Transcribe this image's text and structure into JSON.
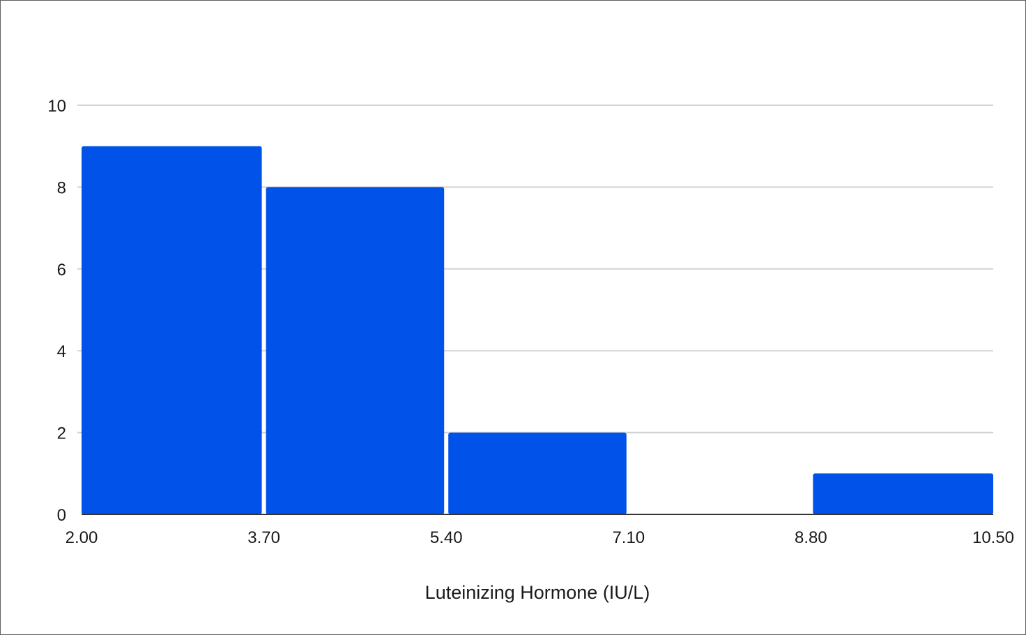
{
  "chart_data": {
    "type": "bar",
    "subtype": "histogram",
    "title": "",
    "xlabel": "Luteinizing Hormone (IU/L)",
    "ylabel": "",
    "bin_edges": [
      2.0,
      3.7,
      5.4,
      7.1,
      8.8,
      10.5
    ],
    "x_tick_labels": [
      "2.00",
      "3.70",
      "5.40",
      "7.10",
      "8.80",
      "10.50"
    ],
    "values": [
      9,
      8,
      2,
      0,
      1
    ],
    "ylim": [
      0,
      10
    ],
    "y_ticks": [
      0,
      2,
      4,
      6,
      8,
      10
    ],
    "y_tick_labels": [
      "0",
      "2",
      "4",
      "6",
      "8",
      "10"
    ],
    "grid": true,
    "legend": "none",
    "colors": {
      "bar": "#0052e9",
      "grid": "#d3d3d3",
      "axis": "#333333",
      "text": "#1a1a1a"
    }
  }
}
